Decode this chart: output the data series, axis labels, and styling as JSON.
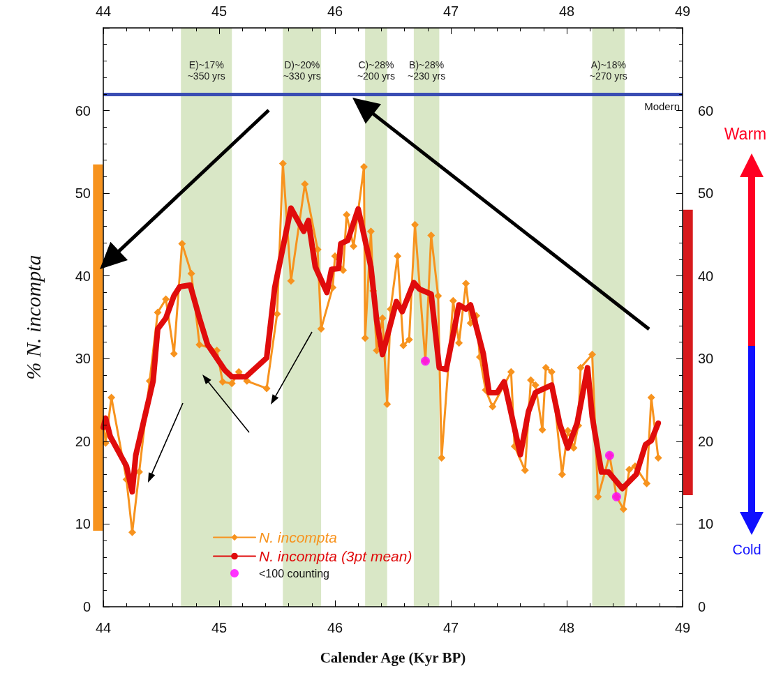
{
  "chart_data": {
    "type": "line",
    "xlabel": "Calender Age (Kyr BP)",
    "ylabel": "% N. incompta",
    "xlim": [
      44,
      49
    ],
    "xticks": [
      44,
      45,
      46,
      47,
      48,
      49
    ],
    "x2lim": [
      44,
      49
    ],
    "x2ticks": [
      44,
      45,
      46,
      47,
      48,
      49
    ],
    "ylim": [
      0,
      70
    ],
    "yticks": [
      0,
      10,
      20,
      30,
      40,
      50,
      60
    ],
    "y2lim": [
      0,
      70
    ],
    "y2ticks": [
      0,
      10,
      20,
      30,
      40,
      50,
      60
    ],
    "grid": false,
    "legend": "bottom left",
    "series": [
      {
        "name": "N. incompta",
        "marker": "diamond",
        "color": "#f7931e",
        "x": [
          44.0,
          44.02,
          44.07,
          44.2,
          44.25,
          44.31,
          44.4,
          44.47,
          44.54,
          44.61,
          44.68,
          44.76,
          44.83,
          44.98,
          45.03,
          45.11,
          45.17,
          45.24,
          45.41,
          45.5,
          45.55,
          45.62,
          45.74,
          45.85,
          45.88,
          45.98,
          46.0,
          46.07,
          46.1,
          46.16,
          46.25,
          46.26,
          46.31,
          46.33,
          46.36,
          46.41,
          46.45,
          46.48,
          46.54,
          46.59,
          46.64,
          46.69,
          46.78,
          46.83,
          46.89,
          46.92,
          47.02,
          47.07,
          47.13,
          47.17,
          47.22,
          47.25,
          47.3,
          47.36,
          47.52,
          47.55,
          47.64,
          47.69,
          47.73,
          47.79,
          47.82,
          47.87,
          47.96,
          48.01,
          48.06,
          48.1,
          48.12,
          48.22,
          48.27,
          48.37,
          48.43,
          48.49,
          48.54,
          48.59,
          48.69,
          48.73,
          48.79
        ],
        "values": [
          22.7,
          19.8,
          25.3,
          15.4,
          9.0,
          16.3,
          27.3,
          35.6,
          37.2,
          30.6,
          43.9,
          40.3,
          31.7,
          31.0,
          27.2,
          27.0,
          28.4,
          27.3,
          26.4,
          35.4,
          53.6,
          39.4,
          51.1,
          43.2,
          33.6,
          38.6,
          42.4,
          40.7,
          47.4,
          43.6,
          53.2,
          32.5,
          45.4,
          38.2,
          31.0,
          34.9,
          24.5,
          36.0,
          42.4,
          31.6,
          32.3,
          46.2,
          29.7,
          44.9,
          37.6,
          18.0,
          37.0,
          31.9,
          39.1,
          34.3,
          35.2,
          30.2,
          26.2,
          24.2,
          28.4,
          19.4,
          16.5,
          27.4,
          26.8,
          21.4,
          28.9,
          28.4,
          16.0,
          21.3,
          19.2,
          21.9,
          28.9,
          30.5,
          13.3,
          18.3,
          13.3,
          11.8,
          16.6,
          17.0,
          14.9,
          25.3,
          18.0
        ]
      },
      {
        "name": "N. incompta (3pt mean)",
        "marker": "none",
        "color": "#e00c0c",
        "x": [
          44.0,
          44.02,
          44.06,
          44.2,
          44.25,
          44.28,
          44.43,
          44.47,
          44.54,
          44.61,
          44.66,
          44.75,
          44.83,
          44.9,
          45.05,
          45.11,
          45.23,
          45.41,
          45.48,
          45.62,
          45.73,
          45.77,
          45.83,
          45.93,
          45.97,
          46.03,
          46.05,
          46.11,
          46.2,
          46.29,
          46.31,
          46.36,
          46.41,
          46.53,
          46.58,
          46.68,
          46.73,
          46.83,
          46.9,
          46.96,
          47.07,
          47.13,
          47.17,
          47.28,
          47.33,
          47.4,
          47.46,
          47.6,
          47.67,
          47.73,
          47.87,
          47.94,
          48.01,
          48.09,
          48.18,
          48.22,
          48.3,
          48.36,
          48.48,
          48.6,
          48.68,
          48.73,
          48.79
        ],
        "values": [
          21.7,
          22.8,
          20.6,
          17.0,
          13.9,
          18.3,
          27.3,
          33.6,
          34.9,
          37.6,
          38.7,
          38.9,
          34.9,
          31.7,
          28.6,
          27.8,
          27.8,
          30.1,
          38.6,
          48.2,
          45.4,
          46.7,
          41.1,
          38.0,
          40.8,
          40.9,
          43.9,
          44.3,
          48.1,
          42.4,
          41.1,
          34.6,
          30.5,
          36.9,
          35.7,
          39.2,
          38.4,
          37.8,
          28.9,
          28.7,
          36.5,
          36.0,
          36.5,
          30.6,
          25.9,
          25.9,
          27.2,
          18.4,
          23.6,
          25.9,
          26.8,
          22.1,
          19.2,
          22.2,
          28.9,
          23.0,
          16.3,
          16.3,
          14.3,
          16.0,
          19.6,
          20.1,
          22.2
        ]
      },
      {
        "name": "<100 counting",
        "type": "scatter",
        "marker": "circle",
        "color": "#ff00ff",
        "x": [
          46.78,
          48.37,
          48.43
        ],
        "values": [
          29.7,
          18.3,
          13.3
        ]
      },
      {
        "type": "bar",
        "color": "#f7931e",
        "x": [
          44
        ],
        "base": [
          9.2
        ],
        "values": [
          44.3
        ]
      },
      {
        "type": "bar",
        "color": "#d7191c",
        "x": [
          49
        ],
        "base": [
          13.5
        ],
        "values": [
          34.5
        ]
      }
    ],
    "ref_lines": [
      {
        "axis": "y",
        "value": 62,
        "label": "Modern",
        "color": "#3a4db3"
      }
    ],
    "bands": [
      {
        "axis": "x",
        "from": 44.67,
        "to": 45.11,
        "label": "E)~17%\n~350 yrs",
        "color": "#d9e7c6"
      },
      {
        "axis": "x",
        "from": 45.55,
        "to": 45.88,
        "label": "D)~20%\n~330 yrs",
        "color": "#d9e7c6"
      },
      {
        "axis": "x",
        "from": 46.26,
        "to": 46.45,
        "label": "C)~28%\n~200 yrs",
        "color": "#d9e7c6"
      },
      {
        "axis": "x",
        "from": 46.68,
        "to": 46.9,
        "label": "B)~28%\n~230 yrs",
        "color": "#d9e7c6"
      },
      {
        "axis": "x",
        "from": 48.22,
        "to": 48.5,
        "label": "A)~18%\n~270 yrs",
        "color": "#d9e7c6"
      }
    ],
    "annotations": [
      "Warm",
      "Cold"
    ]
  }
}
